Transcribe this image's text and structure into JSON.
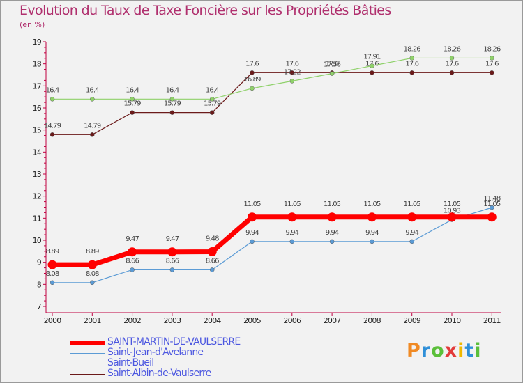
{
  "header": {
    "title": "Evolution du Taux de Taxe Foncière sur les Propriétés Bâties",
    "subtitle": "(en %)"
  },
  "logo": {
    "text": "Proxiti",
    "colors": [
      "#f08a24",
      "#2f8fd8",
      "#5bbf3a",
      "#e23a3a",
      "#f0b800",
      "#2f8fd8",
      "#5bbf3a"
    ]
  },
  "chart_data": {
    "type": "line",
    "x": [
      "2000",
      "2001",
      "2002",
      "2003",
      "2004",
      "2005",
      "2006",
      "2007",
      "2008",
      "2009",
      "2010",
      "2011"
    ],
    "ylim": [
      7,
      19
    ],
    "yticks": [
      "7",
      "8",
      "9",
      "10",
      "11",
      "12",
      "13",
      "14",
      "15",
      "16",
      "17",
      "18",
      "19"
    ],
    "grid": false,
    "legend_position": "bottom-left",
    "series": [
      {
        "name": "SAINT-MARTIN-DE-VAULSERRE",
        "color": "#ff0000",
        "values": [
          8.89,
          8.89,
          9.47,
          9.47,
          9.48,
          11.05,
          11.05,
          11.05,
          11.05,
          11.05,
          11.05,
          11.05
        ],
        "labels": [
          "8.89",
          "8.89",
          "9.47",
          "9.47",
          "9.48",
          "11.05",
          "11.05",
          "11.05",
          "11.05",
          "11.05",
          "11.05",
          "11.05"
        ]
      },
      {
        "name": "Saint-Jean-d'Avelanne",
        "color": "#5b9bd5",
        "values": [
          8.08,
          8.08,
          8.66,
          8.66,
          8.66,
          9.94,
          9.94,
          9.94,
          9.94,
          9.94,
          10.93,
          11.48
        ],
        "labels": [
          "8.08",
          "8.08",
          "8.66",
          "8.66",
          "8.66",
          "9.94",
          "9.94",
          "9.94",
          "9.94",
          "9.94",
          "10.93",
          "11.48"
        ]
      },
      {
        "name": "Saint-Bueil",
        "color": "#8fd16a",
        "values": [
          16.4,
          16.4,
          16.4,
          16.4,
          16.4,
          16.89,
          17.22,
          17.56,
          17.91,
          18.26,
          18.26,
          18.26
        ],
        "labels": [
          "16.4",
          "16.4",
          "16.4",
          "16.4",
          "16.4",
          "16.89",
          "17.22",
          "17.56",
          "17.91",
          "18.26",
          "18.26",
          "18.26"
        ]
      },
      {
        "name": "Saint-Albin-de-Vaulserre",
        "color": "#6b1a1a",
        "values": [
          14.79,
          14.79,
          15.79,
          15.79,
          15.79,
          17.6,
          17.6,
          17.6,
          17.6,
          17.6,
          17.6,
          17.6
        ],
        "labels": [
          "14.79",
          "14.79",
          "15.79",
          "15.79",
          "15.79",
          "17.6",
          "17.6",
          "17.6",
          "17.6",
          "17.6",
          "17.6",
          "17.6"
        ]
      }
    ]
  }
}
